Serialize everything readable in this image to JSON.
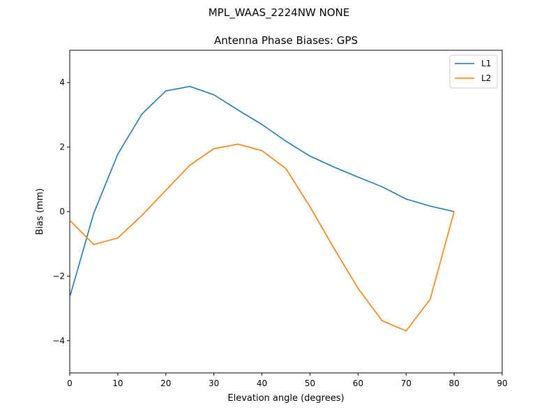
{
  "figure": {
    "suptitle": "MPL_WAAS_2224NW NONE"
  },
  "chart_data": {
    "type": "line",
    "title": "Antenna Phase Biases: GPS",
    "xlabel": "Elevation angle (degrees)",
    "ylabel": "Bias (mm)",
    "xlim": [
      0,
      90
    ],
    "ylim": [
      -5,
      5
    ],
    "xticks": [
      0,
      10,
      20,
      30,
      40,
      50,
      60,
      70,
      80,
      90
    ],
    "yticks": [
      -4,
      -2,
      0,
      2,
      4
    ],
    "xtick_labels": [
      "0",
      "10",
      "20",
      "30",
      "40",
      "50",
      "60",
      "70",
      "80",
      "90"
    ],
    "ytick_labels": [
      "−4",
      "−2",
      "0",
      "2",
      "4"
    ],
    "grid": false,
    "legend_position": "top-right",
    "x": [
      0,
      5,
      10,
      15,
      20,
      25,
      30,
      35,
      40,
      45,
      50,
      55,
      60,
      65,
      70,
      75,
      80
    ],
    "series": [
      {
        "name": "L1",
        "color": "#1f77b4",
        "values": [
          -2.65,
          -0.05,
          1.78,
          3.02,
          3.74,
          3.88,
          3.62,
          3.15,
          2.7,
          2.18,
          1.72,
          1.38,
          1.07,
          0.77,
          0.39,
          0.17,
          0.0
        ]
      },
      {
        "name": "L2",
        "color": "#ff7f0e",
        "values": [
          -0.27,
          -1.02,
          -0.82,
          -0.12,
          0.66,
          1.44,
          1.95,
          2.09,
          1.89,
          1.33,
          0.15,
          -1.14,
          -2.38,
          -3.38,
          -3.7,
          -2.72,
          0.0
        ]
      }
    ]
  }
}
